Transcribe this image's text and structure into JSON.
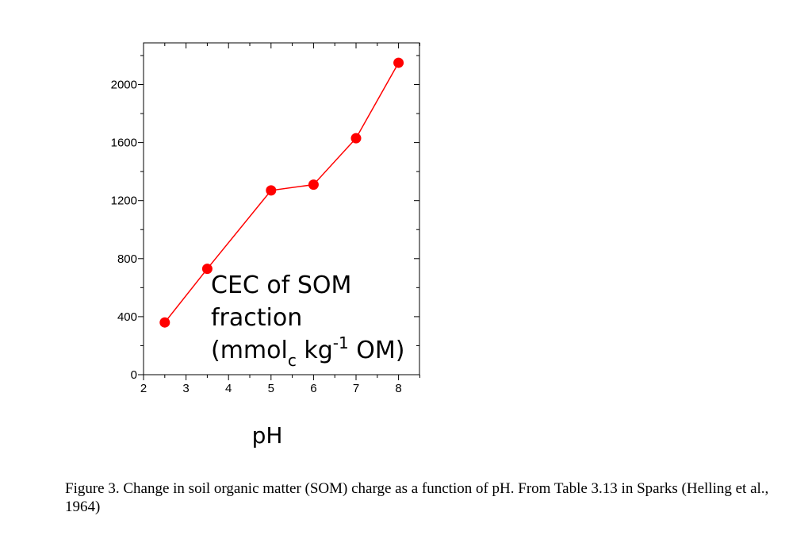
{
  "chart_data": {
    "type": "line",
    "x": [
      2.5,
      3.5,
      5,
      6,
      7,
      8
    ],
    "series": [
      {
        "values": [
          360,
          730,
          1270,
          1310,
          1630,
          2150
        ]
      }
    ],
    "xlabel": "pH",
    "ylabel": "",
    "xlim": [
      2,
      8.5
    ],
    "ylim": [
      0,
      2200
    ],
    "xticks": [
      "2",
      "3",
      "4",
      "5",
      "6",
      "7",
      "8"
    ],
    "yticks": [
      "0",
      "400",
      "800",
      "1200",
      "1600",
      "2000"
    ],
    "annotation": {
      "line1": "CEC of SOM",
      "line2": "fraction",
      "line3_open": "(mmol",
      "line3_sub": "c",
      "line3_mid": " kg",
      "line3_sup": "-1",
      "line3_end": " OM)"
    },
    "grid": false,
    "series_color": "#ff0000",
    "marker_color": "#ff0000"
  },
  "caption": "Figure 3. Change in soil organic matter (SOM) charge as a function of pH. From Table 3.13 in Sparks (Helling et al., 1964)"
}
